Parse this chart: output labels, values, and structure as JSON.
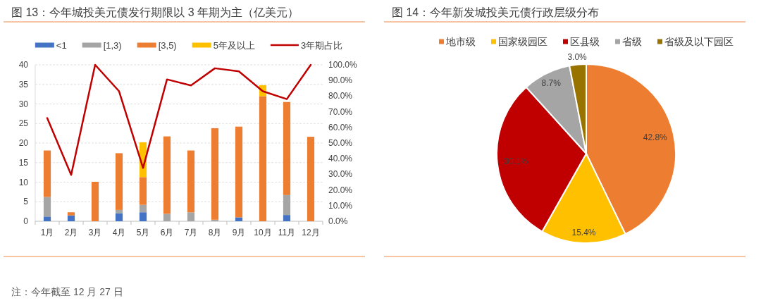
{
  "chart_data": [
    {
      "type": "bar",
      "title": "图 13：今年城投美元债发行期限以 3 年期为主（亿美元）",
      "stacked": true,
      "categories": [
        "1月",
        "2月",
        "3月",
        "4月",
        "5月",
        "6月",
        "7月",
        "8月",
        "9月",
        "10月",
        "11月",
        "12月"
      ],
      "series": [
        {
          "name": "<1",
          "color": "#4472c4",
          "values": [
            1.2,
            1.5,
            null,
            2.0,
            2.3,
            null,
            null,
            null,
            1.0,
            null,
            1.6,
            null
          ]
        },
        {
          "name": "[1,3)",
          "color": "#a5a5a5",
          "values": [
            5.0,
            null,
            null,
            0.9,
            1.9,
            1.9,
            2.3,
            0.4,
            null,
            null,
            5.1,
            null
          ]
        },
        {
          "name": "[3,5)",
          "color": "#ed7d31",
          "values": [
            11.9,
            0.8,
            10.1,
            14.5,
            7.1,
            19.8,
            15.8,
            23.4,
            23.2,
            32.0,
            23.8,
            21.6
          ]
        },
        {
          "name": "5年及以上",
          "color": "#ffc000",
          "values": [
            null,
            null,
            null,
            null,
            8.9,
            null,
            null,
            null,
            null,
            2.8,
            null,
            null
          ]
        },
        {
          "name": "3年期占比",
          "type": "line",
          "axis": "y2",
          "color": "#c00000",
          "values": [
            66.0,
            29.6,
            100,
            83.1,
            34.1,
            90.7,
            86.8,
            97.8,
            95.8,
            83.1,
            78.1,
            100
          ]
        }
      ],
      "ylim": [
        0,
        40
      ],
      "yticks": [
        0,
        5,
        10,
        15,
        20,
        25,
        30,
        35,
        40
      ],
      "y2lim": [
        0,
        100
      ],
      "y2ticks": [
        {
          "value": 0,
          "label": "0.0%"
        },
        {
          "value": 10,
          "label": "10.0%"
        },
        {
          "value": 20,
          "label": "20.0%"
        },
        {
          "value": 30,
          "label": "30.0%"
        },
        {
          "value": 40,
          "label": "40.0%"
        },
        {
          "value": 50,
          "label": "50.0%"
        },
        {
          "value": 60,
          "label": "60.0%"
        },
        {
          "value": 70,
          "label": "70.0%"
        },
        {
          "value": 80,
          "label": "80.0%"
        },
        {
          "value": 90,
          "label": "90.0%"
        },
        {
          "value": 100,
          "label": "100.0%"
        }
      ],
      "grid": "y",
      "legend": "top",
      "annotations": [
        "注：今年截至 12 月 27 日"
      ]
    },
    {
      "type": "pie",
      "title": "图 14：今年新发城投美元债行政层级分布",
      "categories": [
        "地市级",
        "国家级园区",
        "区县级",
        "省级",
        "省级及以下园区"
      ],
      "values": [
        42.8,
        15.4,
        30.1,
        8.7,
        3.0
      ],
      "colors": [
        "#ed7d31",
        "#ffc000",
        "#c00000",
        "#a5a5a5",
        "#997300"
      ],
      "value_labels": [
        "42.8%",
        "15.4%",
        "30.1%",
        "8.7%",
        "3.0%"
      ],
      "legend": "top"
    }
  ]
}
